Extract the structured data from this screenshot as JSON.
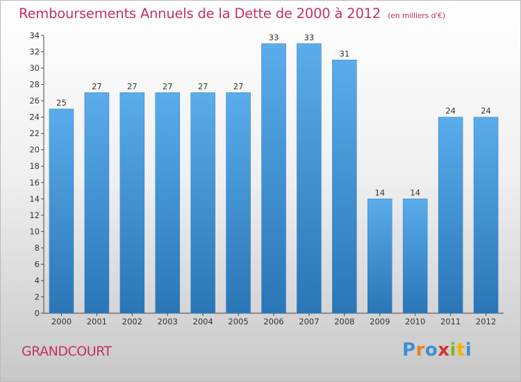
{
  "chart_data": {
    "type": "bar",
    "title": "Remboursements Annuels de la Dette de 2000 à 2012",
    "unit_note": "(en milliers d'€)",
    "categories": [
      "2000",
      "2001",
      "2002",
      "2003",
      "2004",
      "2005",
      "2006",
      "2007",
      "2008",
      "2009",
      "2010",
      "2011",
      "2012"
    ],
    "values": [
      25,
      27,
      27,
      27,
      27,
      27,
      33,
      33,
      31,
      14,
      14,
      24,
      24
    ],
    "ylim": [
      0,
      34
    ],
    "yticks": [
      0,
      2,
      4,
      6,
      8,
      10,
      12,
      14,
      16,
      18,
      20,
      22,
      24,
      26,
      28,
      30,
      32,
      34
    ],
    "grid": false,
    "bar_color_top": "#5aacea",
    "bar_color_bottom": "#2a76b6"
  },
  "footer": {
    "commune": "GRANDCOURT",
    "logo_letters": [
      {
        "ch": "P",
        "color": "#3d8fd6"
      },
      {
        "ch": "r",
        "color": "#e8801c"
      },
      {
        "ch": "o",
        "color": "#3d8fd6"
      },
      {
        "ch": "x",
        "color": "#d8342b"
      },
      {
        "ch": "i",
        "color": "#7ab82a"
      },
      {
        "ch": "t",
        "color": "#f0b400"
      },
      {
        "ch": "i",
        "color": "#3d8fd6"
      }
    ]
  }
}
